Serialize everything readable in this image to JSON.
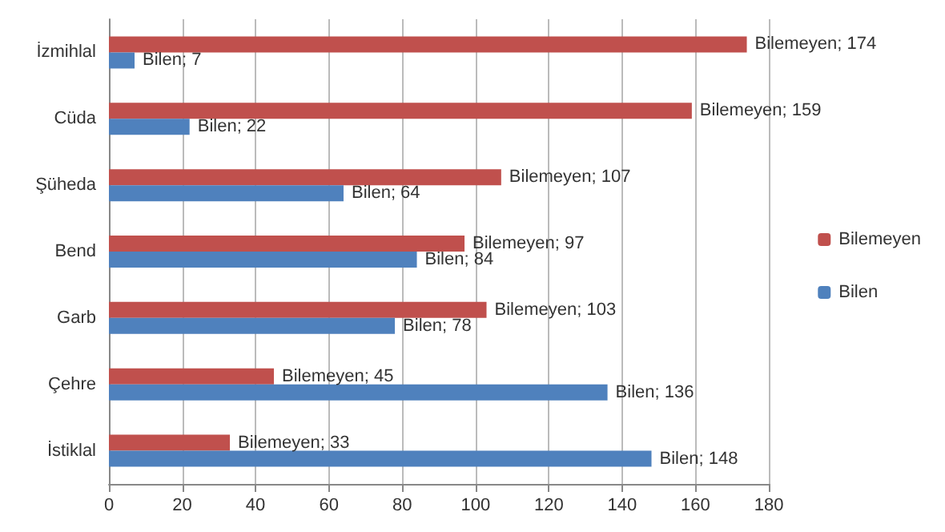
{
  "chart_data": {
    "type": "bar",
    "orientation": "horizontal",
    "categories": [
      "İzmihlal",
      "Cüda",
      "Şüheda",
      "Bend",
      "Garb",
      "Çehre",
      "İstiklal"
    ],
    "series": [
      {
        "name": "Bilemeyen",
        "color": "#c0504d",
        "values": [
          174,
          159,
          107,
          97,
          103,
          45,
          33
        ],
        "value_labels": [
          "Bilemeyen; 174",
          "Bilemeyen; 159",
          "Bilemeyen; 107",
          "Bilemeyen; 97",
          "Bilemeyen; 103",
          "Bilemeyen; 45",
          "Bilemeyen; 33"
        ]
      },
      {
        "name": "Bilen",
        "color": "#4f81bd",
        "values": [
          7,
          22,
          64,
          84,
          78,
          136,
          148
        ],
        "value_labels": [
          "Bilen; 7",
          "Bilen; 22",
          "Bilen; 64",
          "Bilen; 84",
          "Bilen; 78",
          "Bilen; 136",
          "Bilen; 148"
        ]
      }
    ],
    "xlim": [
      0,
      180
    ],
    "xticks": [
      0,
      20,
      40,
      60,
      80,
      100,
      120,
      140,
      160,
      180
    ],
    "grid": "x",
    "legend": "right"
  }
}
